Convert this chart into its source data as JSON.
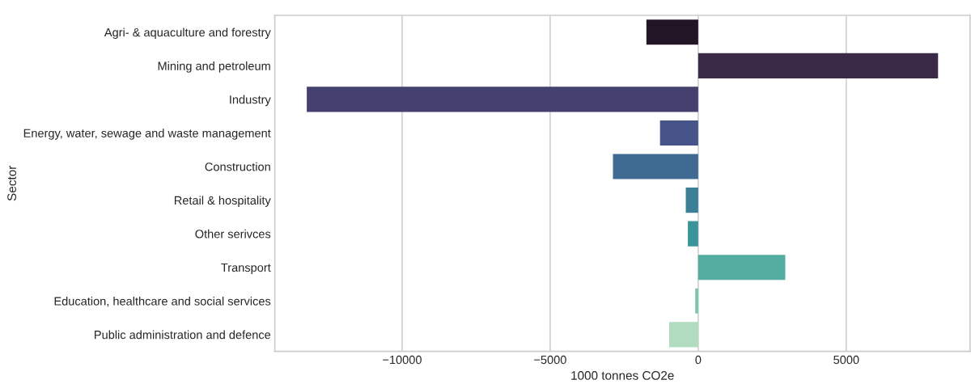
{
  "chart_data": {
    "type": "bar",
    "orientation": "horizontal",
    "xlabel": "1000 tonnes CO2e",
    "ylabel": "Sector",
    "categories": [
      "Agri- & aquaculture and forestry",
      "Mining and petroleum",
      "Industry",
      "Energy, water, sewage and waste management",
      "Construction",
      "Retail & hospitality",
      "Other serivces",
      "Transport",
      "Education, healthcare and social services",
      "Public administration and defence"
    ],
    "values": [
      -1750,
      8100,
      -13220,
      -1290,
      -2880,
      -420,
      -350,
      2940,
      -100,
      -980
    ],
    "colors": [
      "#221626",
      "#3a2a47",
      "#45416e",
      "#46548a",
      "#3f6b92",
      "#3d7f97",
      "#3b939c",
      "#52ac9f",
      "#78c6a9",
      "#b1dcbf"
    ],
    "xlim": [
      -14300,
      9180
    ],
    "xticks": [
      {
        "value": -10000,
        "label": "−10000"
      },
      {
        "value": -5000,
        "label": "−5000"
      },
      0,
      5000
    ],
    "grid": "x"
  }
}
